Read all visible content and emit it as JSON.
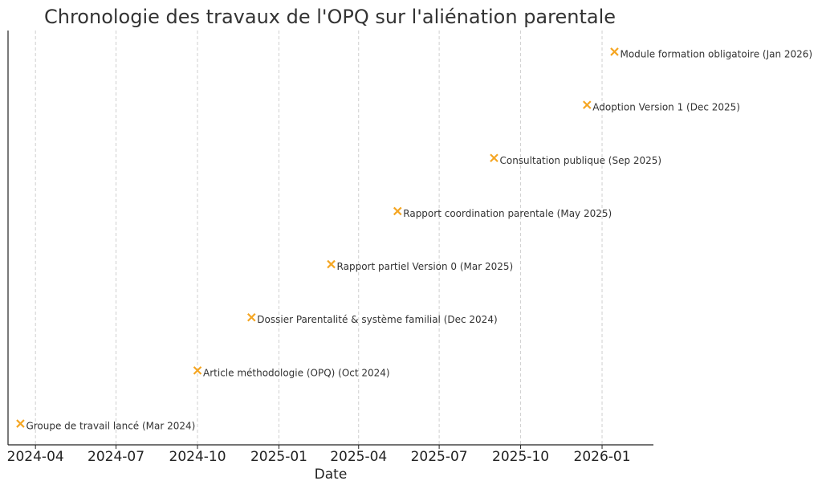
{
  "chart_data": {
    "type": "scatter",
    "title": "Chronologie des travaux de l'OPQ sur l'aliénation parentale",
    "xlabel": "Date",
    "ylabel": "",
    "x_axis_type": "date",
    "xlim": [
      "2024-03-01",
      "2026-02-28"
    ],
    "ylim": [
      0.6,
      8.4
    ],
    "x_ticks": [
      "2024-04-01",
      "2024-07-01",
      "2024-10-01",
      "2025-01-01",
      "2025-04-01",
      "2025-07-01",
      "2025-10-01",
      "2026-01-01"
    ],
    "x_tick_labels": [
      "2024-04",
      "2024-07",
      "2024-10",
      "2025-01",
      "2025-04",
      "2025-07",
      "2025-10",
      "2026-01"
    ],
    "grid": true,
    "marker": "x",
    "marker_color": "#f5a623",
    "points": [
      {
        "date": "2024-03-15",
        "y": 1,
        "label": "Groupe de travail lancé (Mar 2024)"
      },
      {
        "date": "2024-10-01",
        "y": 2,
        "label": "Article méthodologie (OPQ) (Oct 2024)"
      },
      {
        "date": "2024-12-01",
        "y": 3,
        "label": "Dossier Parentalité & système familial (Dec 2024)"
      },
      {
        "date": "2025-03-01",
        "y": 4,
        "label": "Rapport partiel Version 0 (Mar 2025)"
      },
      {
        "date": "2025-05-15",
        "y": 5,
        "label": "Rapport coordination parentale (May 2025)"
      },
      {
        "date": "2025-09-01",
        "y": 6,
        "label": "Consultation publique (Sep 2025)"
      },
      {
        "date": "2025-12-15",
        "y": 7,
        "label": "Adoption Version 1 (Dec 2025)"
      },
      {
        "date": "2026-01-15",
        "y": 8,
        "label": "Module formation obligatoire (Jan 2026)"
      }
    ]
  }
}
